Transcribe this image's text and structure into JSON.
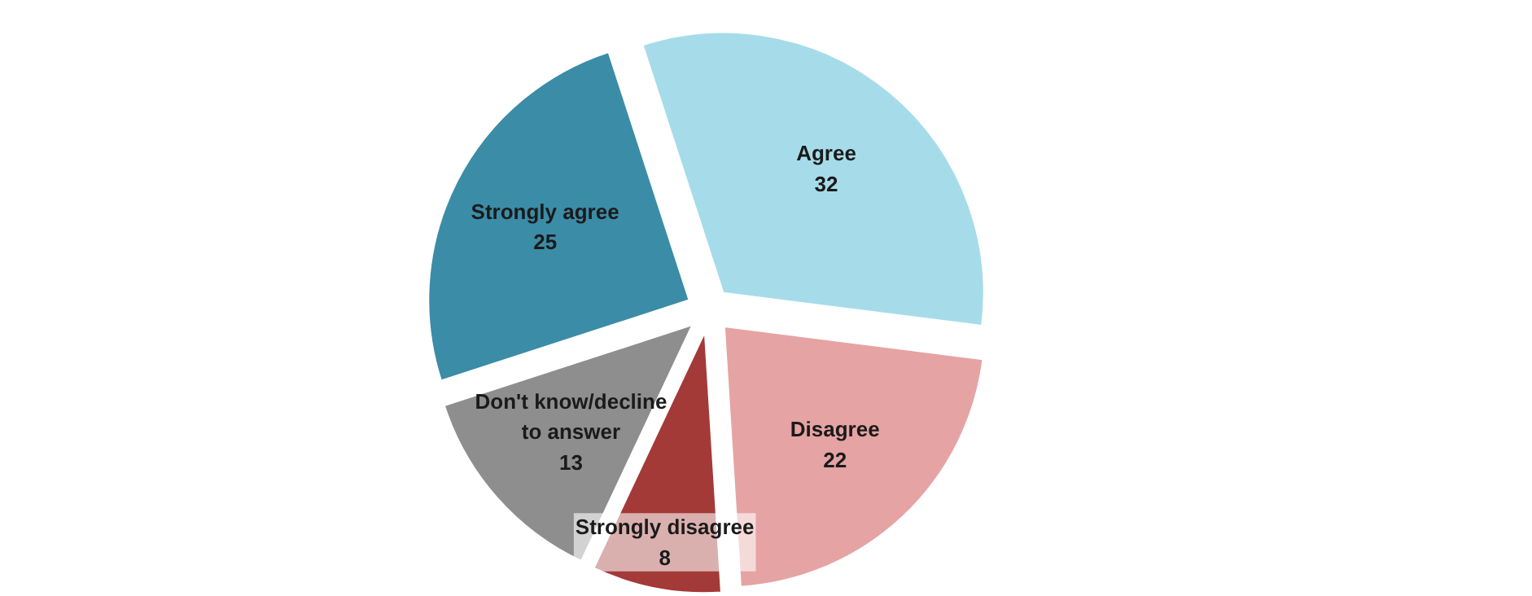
{
  "chart_data": {
    "type": "pie",
    "categories": [
      "Agree",
      "Disagree",
      "Strongly disagree",
      "Don't know/decline to answer",
      "Strongly agree"
    ],
    "values": [
      32,
      22,
      8,
      13,
      25
    ],
    "colors": [
      "#a6dcea",
      "#e6a3a3",
      "#a33a37",
      "#8e8e8e",
      "#3b8ca7"
    ],
    "data_labels": true
  }
}
